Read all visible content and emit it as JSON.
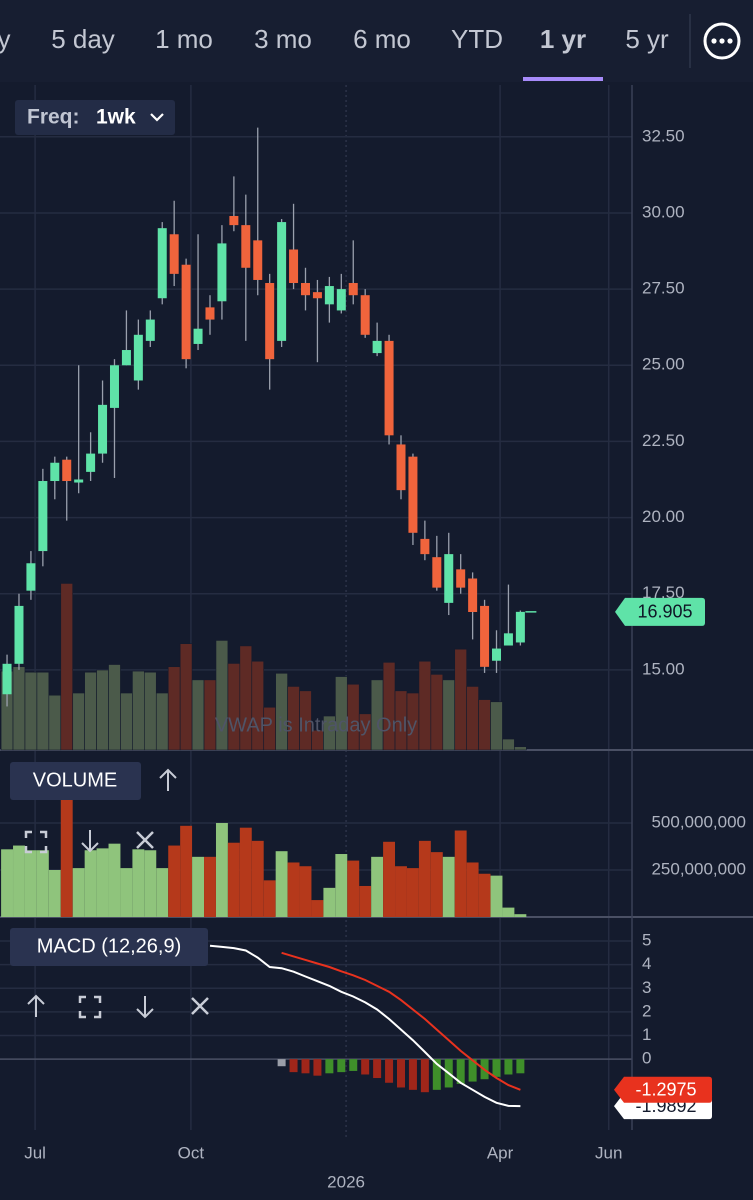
{
  "tabs": [
    "y",
    "5 day",
    "1 mo",
    "3 mo",
    "6 mo",
    "YTD",
    "1 yr",
    "5 yr"
  ],
  "active_tab": 6,
  "freq": {
    "label": "Freq:",
    "value": "1wk"
  },
  "chart_data": [
    {
      "type": "candlestick",
      "annotation": "VWAP is Intraday Only",
      "open": [
        14.2,
        15.2,
        17.6,
        18.9,
        21.2,
        21.9,
        21.15,
        21.5,
        22.1,
        23.6,
        25.0,
        24.5,
        25.8,
        27.2,
        29.3,
        28.3,
        25.7,
        26.9,
        27.1,
        29.9,
        29.6,
        29.1,
        27.7,
        25.8,
        28.8,
        27.7,
        27.4,
        27.0,
        26.8,
        27.7,
        27.3,
        25.4,
        25.8,
        22.4,
        22.0,
        19.3,
        18.7,
        17.2,
        18.3,
        18.0,
        17.1,
        15.3,
        15.8,
        15.9
      ],
      "high": [
        15.5,
        17.5,
        18.9,
        21.6,
        22.0,
        22.0,
        25.0,
        22.8,
        24.5,
        25.2,
        26.8,
        26.5,
        26.8,
        29.7,
        30.4,
        28.5,
        29.3,
        27.3,
        29.6,
        31.2,
        30.6,
        32.8,
        28.0,
        29.8,
        30.3,
        28.2,
        27.8,
        27.9,
        28.0,
        29.1,
        27.5,
        26.4,
        26.0,
        22.7,
        22.1,
        19.9,
        19.4,
        19.5,
        18.8,
        18.2,
        17.3,
        16.3,
        17.8,
        16.95
      ],
      "low": [
        13.8,
        15.0,
        17.3,
        18.4,
        20.6,
        19.9,
        20.8,
        21.2,
        21.8,
        21.3,
        25.0,
        24.2,
        25.6,
        27.0,
        27.6,
        24.9,
        25.5,
        26.0,
        26.5,
        29.4,
        25.8,
        27.3,
        24.2,
        25.6,
        27.5,
        26.8,
        25.1,
        26.4,
        26.7,
        27.0,
        25.9,
        25.3,
        22.4,
        20.6,
        19.1,
        18.6,
        17.6,
        16.8,
        17.5,
        16.0,
        14.9,
        14.9,
        15.8,
        15.8
      ],
      "close": [
        15.2,
        17.1,
        18.5,
        21.2,
        21.8,
        21.2,
        21.25,
        22.1,
        23.7,
        25.0,
        25.5,
        26.0,
        26.5,
        29.5,
        28.0,
        25.2,
        26.2,
        26.5,
        29.0,
        29.6,
        28.2,
        27.8,
        25.2,
        29.7,
        27.7,
        27.3,
        27.2,
        27.6,
        27.5,
        27.3,
        26.0,
        25.8,
        22.7,
        20.9,
        19.5,
        18.8,
        17.7,
        18.8,
        17.7,
        16.9,
        15.1,
        15.7,
        16.2,
        16.905
      ],
      "up_color": "#5fe3a8",
      "down_color": "#f0643c",
      "xlim": [
        -0.59,
        52.35
      ],
      "xticks": [
        {
          "value": 2.35,
          "label": "Jul"
        },
        {
          "value": 15.4,
          "label": "Oct"
        },
        {
          "value": 41.3,
          "label": "Apr"
        },
        {
          "value": 50.4,
          "label": "Jun"
        }
      ],
      "year_ticks": [
        {
          "value": 28.4,
          "label": "2026"
        }
      ],
      "ylim": [
        12.37,
        34.2
      ],
      "yticks": [
        {
          "value": 15,
          "label": "15.00"
        },
        {
          "value": 17.5,
          "label": "17.50"
        },
        {
          "value": 20,
          "label": "20.00"
        },
        {
          "value": 22.5,
          "label": "22.50"
        },
        {
          "value": 25,
          "label": "25.00"
        },
        {
          "value": 27.5,
          "label": "27.50"
        },
        {
          "value": 30,
          "label": "30.00"
        },
        {
          "value": 32.5,
          "label": "32.50"
        }
      ],
      "grid": true
    },
    {
      "type": "bar",
      "title": "VOLUME",
      "values": [
        360000000,
        380000000,
        355000000,
        355000000,
        250000000,
        760000000,
        260000000,
        355000000,
        365000000,
        390000000,
        260000000,
        360000000,
        355000000,
        260000000,
        380000000,
        485000000,
        320000000,
        320000000,
        500000000,
        395000000,
        475000000,
        405000000,
        195000000,
        350000000,
        290000000,
        270000000,
        90000000,
        155000000,
        335000000,
        300000000,
        165000000,
        320000000,
        400000000,
        270000000,
        260000000,
        405000000,
        345000000,
        320000000,
        460000000,
        290000000,
        230000000,
        220000000,
        50000000,
        15000000
      ],
      "up_color": "#8fc47c",
      "down_color": "#b5391b",
      "ylim": [
        0,
        835000000
      ],
      "yticks": [
        {
          "value": 250000000,
          "label": "250,000,000"
        },
        {
          "value": 500000000,
          "label": "500,000,000"
        }
      ],
      "grid": true
    },
    {
      "type": "macd",
      "title": "MACD (12,26,9)",
      "series": [
        {
          "color": "#ffffff",
          "values": [
            null,
            null,
            null,
            null,
            null,
            null,
            null,
            null,
            null,
            null,
            null,
            null,
            null,
            null,
            null,
            null,
            null,
            4.8,
            4.75,
            4.7,
            4.6,
            4.3,
            3.9,
            3.85,
            3.7,
            3.5,
            3.3,
            3.1,
            2.85,
            2.65,
            2.4,
            2.1,
            1.7,
            1.25,
            0.8,
            0.3,
            -0.2,
            -0.6,
            -1.0,
            -1.3,
            -1.6,
            -1.85,
            -1.98,
            -1.9892
          ]
        },
        {
          "color": "#e8321e",
          "values": [
            null,
            null,
            null,
            null,
            null,
            null,
            null,
            null,
            null,
            null,
            null,
            null,
            null,
            null,
            null,
            null,
            null,
            null,
            null,
            null,
            null,
            null,
            null,
            4.5,
            4.35,
            4.2,
            4.05,
            3.9,
            3.72,
            3.55,
            3.35,
            3.1,
            2.85,
            2.5,
            2.1,
            1.7,
            1.25,
            0.8,
            0.35,
            -0.05,
            -0.45,
            -0.8,
            -1.1,
            -1.2975
          ]
        }
      ],
      "histogram": {
        "values": [
          null,
          null,
          null,
          null,
          null,
          null,
          null,
          null,
          null,
          null,
          null,
          null,
          null,
          null,
          null,
          null,
          null,
          null,
          null,
          null,
          null,
          null,
          null,
          -0.3,
          -0.55,
          -0.6,
          -0.7,
          -0.6,
          -0.55,
          -0.5,
          -0.65,
          -0.8,
          -1.0,
          -1.2,
          -1.3,
          -1.4,
          -1.3,
          -1.2,
          -1.05,
          -0.95,
          -0.85,
          -0.75,
          -0.65,
          -0.6
        ],
        "colors": [
          null,
          null,
          null,
          null,
          null,
          null,
          null,
          null,
          null,
          null,
          null,
          null,
          null,
          null,
          null,
          null,
          null,
          null,
          null,
          null,
          null,
          null,
          null,
          "#9a9ea8",
          "#a0261a",
          "#a0261a",
          "#a0261a",
          "#3f8f2a",
          "#3f8f2a",
          "#3f8f2a",
          "#a0261a",
          "#a0261a",
          "#a0261a",
          "#a0261a",
          "#a0261a",
          "#a0261a",
          "#3f8f2a",
          "#3f8f2a",
          "#3f8f2a",
          "#3f8f2a",
          "#3f8f2a",
          "#3f8f2a",
          "#3f8f2a",
          "#3f8f2a"
        ]
      },
      "ylim": [
        -3.0,
        5.89
      ],
      "yticks": [
        0,
        1,
        2,
        3,
        4,
        5
      ],
      "grid": true
    }
  ]
}
